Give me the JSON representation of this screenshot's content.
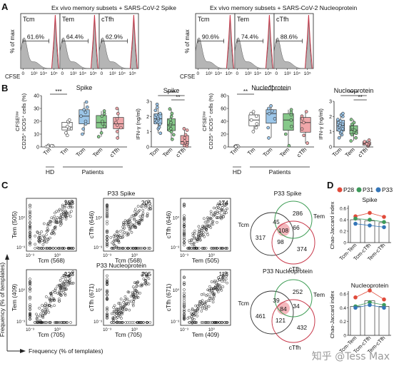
{
  "panels": {
    "A": {
      "letter": "A",
      "left_title": "Ex vivo memory subsets + SARS-CoV-2 Spike",
      "right_title": "Ex vivo memory subsets + SARS-CoV-2 Nucleoprotein",
      "ylabel": "% of max",
      "xlabel": "CFSE",
      "ticks": [
        "0",
        "10³",
        "10⁴",
        "10⁵"
      ],
      "histograms": [
        {
          "subset": "Tcm",
          "pct": "61.6%"
        },
        {
          "subset": "Tem",
          "pct": "64.4%"
        },
        {
          "subset": "cTfh",
          "pct": "62.9%"
        },
        {
          "subset": "Tcm",
          "pct": "90.6%"
        },
        {
          "subset": "Tem",
          "pct": "74.4%"
        },
        {
          "subset": "cTfh",
          "pct": "88.6%"
        }
      ],
      "colors": {
        "fill": "#b5b5b5",
        "outline": "#c8384a"
      }
    },
    "B": {
      "letter": "B",
      "charts": [
        {
          "title": "Spike",
          "ylabel_lines": [
            "CFSEˡᵒʷ",
            "CD25⁺ ICOS⁺ cells (%)"
          ],
          "yticks": [
            "0",
            "10",
            "20",
            "30",
            "40"
          ],
          "ylim": [
            0,
            40
          ],
          "groups": [
            {
              "label": "Tm",
              "cohort": "HD",
              "values": [
                0.3,
                0.8,
                1.2,
                0.5,
                1.0
              ],
              "color": "#ffffff"
            },
            {
              "label": "Tm",
              "cohort": "Patients",
              "values": [
                9,
                11,
                14,
                15,
                16,
                19,
                20,
                21
              ],
              "color": "#ffffff"
            },
            {
              "label": "Tcm",
              "cohort": "Patients",
              "values": [
                10,
                14,
                18,
                20,
                24,
                27,
                29,
                31,
                35
              ],
              "color": "#9cc6e9"
            },
            {
              "label": "Tem",
              "cohort": "Patients",
              "values": [
                8,
                11,
                16,
                18,
                20,
                24,
                26,
                28
              ],
              "color": "#86c98a"
            },
            {
              "label": "cTfh",
              "cohort": "Patients",
              "values": [
                7,
                12,
                15,
                17,
                19,
                22,
                26,
                30
              ],
              "color": "#f0a7aa"
            }
          ],
          "sig": [
            {
              "from": 0,
              "to": 1,
              "label": "***"
            }
          ],
          "cohort_labels": [
            "HD",
            "Patients"
          ]
        },
        {
          "title": "Spike",
          "ylabel_lines": [
            "IFN-γ (ng/ml)"
          ],
          "yticks": [
            "0",
            "1",
            "2",
            "3"
          ],
          "ylim": [
            0,
            3
          ],
          "groups": [
            {
              "label": "Tcm",
              "values": [
                0.9,
                1.2,
                1.3,
                1.5,
                1.6,
                1.7,
                1.8,
                1.9,
                2.0,
                2.1,
                2.2,
                2.4,
                2.6,
                2.8
              ],
              "color": "#9cc6e9"
            },
            {
              "label": "Tem",
              "values": [
                0.5,
                0.8,
                1.0,
                1.1,
                1.2,
                1.4,
                1.5,
                1.6,
                1.8,
                2.0,
                2.2,
                2.5
              ],
              "color": "#86c98a"
            },
            {
              "label": "cTfh",
              "values": [
                0.05,
                0.1,
                0.15,
                0.25,
                0.3,
                0.4,
                0.6,
                0.8,
                1.1,
                1.2
              ],
              "color": "#f0a7aa"
            }
          ],
          "sig": [
            {
              "from": 1,
              "to": 2,
              "label": "**"
            },
            {
              "from": 0,
              "to": 2,
              "label": "****"
            }
          ],
          "cohort_labels": []
        },
        {
          "title": "Nucleoprotein",
          "ylabel_lines": [
            "CFSEˡᵒʷ",
            "CD25⁺ ICOS⁺ cells (%)"
          ],
          "yticks": [
            "0",
            "20",
            "40",
            "60",
            "80"
          ],
          "ylim": [
            0,
            80
          ],
          "groups": [
            {
              "label": "Tm",
              "cohort": "HD",
              "values": [
                0.5,
                1,
                2,
                1.5,
                0.8
              ],
              "color": "#ffffff"
            },
            {
              "label": "Tm",
              "cohort": "Patients",
              "values": [
                24,
                30,
                36,
                42,
                48,
                52,
                55
              ],
              "color": "#ffffff"
            },
            {
              "label": "Tcm",
              "cohort": "Patients",
              "values": [
                14,
                30,
                44,
                52,
                56,
                60,
                64
              ],
              "color": "#9cc6e9"
            },
            {
              "label": "Tem",
              "cohort": "Patients",
              "values": [
                2,
                20,
                32,
                42,
                50,
                54,
                58
              ],
              "color": "#86c98a"
            },
            {
              "label": "cTfh",
              "cohort": "Patients",
              "values": [
                6,
                18,
                28,
                38,
                44,
                48,
                55
              ],
              "color": "#f0a7aa"
            }
          ],
          "sig": [
            {
              "from": 0,
              "to": 1,
              "label": "**"
            },
            {
              "from": 1,
              "to": 3,
              "label": "**"
            }
          ],
          "cohort_labels": [
            "HD",
            "Patients"
          ]
        },
        {
          "title": "Nucleoprotein",
          "ylabel_lines": [
            "IFN-γ (ng/ml)"
          ],
          "yticks": [
            "0",
            "1",
            "2",
            "3"
          ],
          "ylim": [
            0,
            3
          ],
          "groups": [
            {
              "label": "Tcm",
              "values": [
                0.6,
                0.8,
                0.9,
                1.0,
                1.1,
                1.2,
                1.3,
                1.4,
                1.5,
                1.6,
                1.7,
                1.8,
                2.0,
                2.1,
                2.2
              ],
              "color": "#9cc6e9"
            },
            {
              "label": "Tem",
              "values": [
                0.4,
                0.6,
                0.8,
                0.9,
                1.0,
                1.1,
                1.2,
                1.3,
                1.5,
                1.6,
                1.8
              ],
              "color": "#86c98a"
            },
            {
              "label": "cTfh",
              "values": [
                0.05,
                0.1,
                0.15,
                0.2,
                0.3,
                0.35,
                0.45
              ],
              "color": "#f0a7aa"
            }
          ],
          "sig": [
            {
              "from": 1,
              "to": 2,
              "label": "**"
            },
            {
              "from": 0,
              "to": 2,
              "label": "****"
            }
          ],
          "cohort_labels": []
        }
      ]
    },
    "C": {
      "letter": "C",
      "row_titles": [
        "P33 Spike",
        "P33 Nucleoprotein"
      ],
      "ylabel_outer": "Frequency (% of templates)",
      "xlabel_outer": "Frequency (% of templates)",
      "tick_low": "10⁻³",
      "tick_mid": "10⁰",
      "scatters": [
        {
          "x": "Tcm (568)",
          "y": "Tem (505)",
          "n": "153"
        },
        {
          "x": "Tcm (568)",
          "y": "cTfh (646)",
          "n": "206"
        },
        {
          "x": "Tem (505)",
          "y": "cTfh (646)",
          "n": "174"
        },
        {
          "x": "Tcm (705)",
          "y": "Tem (409)",
          "n": "123"
        },
        {
          "x": "Tcm (705)",
          "y": "cTfh (671)",
          "n": "205"
        },
        {
          "x": "Tem (409)",
          "y": "cTfh (671)",
          "n": "118"
        }
      ],
      "venns": [
        {
          "title": "P33 Spike",
          "labels": [
            "Tcm",
            "Tem",
            "cTfh"
          ],
          "regions": [
            "317",
            "286",
            "374",
            "45",
            "98",
            "66",
            "108"
          ]
        },
        {
          "title": "P33 Nucleoprotein",
          "labels": [
            "Tcm",
            "Tem",
            "cTfh"
          ],
          "regions": [
            "461",
            "252",
            "432",
            "39",
            "121",
            "34",
            "84"
          ]
        }
      ],
      "venn_colors": {
        "tem": "#3e9d55",
        "ctfh": "#c8384a",
        "center": "#f4b8bd"
      }
    },
    "D": {
      "letter": "D",
      "legend": [
        {
          "label": "P28",
          "color": "#e04a3a"
        },
        {
          "label": "P31",
          "color": "#3d9a5a"
        },
        {
          "label": "P33",
          "color": "#3576b8"
        }
      ],
      "ylabel": "Chao-Jaccard index",
      "yticks": [
        "0",
        "0.2",
        "0.4",
        "0.6"
      ],
      "ylim": [
        0,
        0.6
      ],
      "categories": [
        "Tcm-Tem",
        "Tcm-cTfh",
        "Tem-cTfh"
      ],
      "charts": [
        {
          "title": "Spike",
          "bars": [
            0.4,
            0.38,
            0.35
          ],
          "series": [
            {
              "name": "P28",
              "values": [
                0.46,
                0.52,
                0.45
              ]
            },
            {
              "name": "P31",
              "values": [
                0.42,
                0.4,
                0.36
              ]
            },
            {
              "name": "P33",
              "values": [
                0.33,
                0.3,
                0.27
              ]
            }
          ]
        },
        {
          "title": "Nucleoprotein",
          "bars": [
            0.42,
            0.5,
            0.42
          ],
          "series": [
            {
              "name": "P28",
              "values": [
                0.55,
                0.65,
                0.52
              ]
            },
            {
              "name": "P31",
              "values": [
                0.42,
                0.48,
                0.44
              ]
            },
            {
              "name": "P33",
              "values": [
                0.4,
                0.44,
                0.4
              ]
            }
          ]
        }
      ]
    }
  },
  "watermark": "知乎 @Tess Max"
}
